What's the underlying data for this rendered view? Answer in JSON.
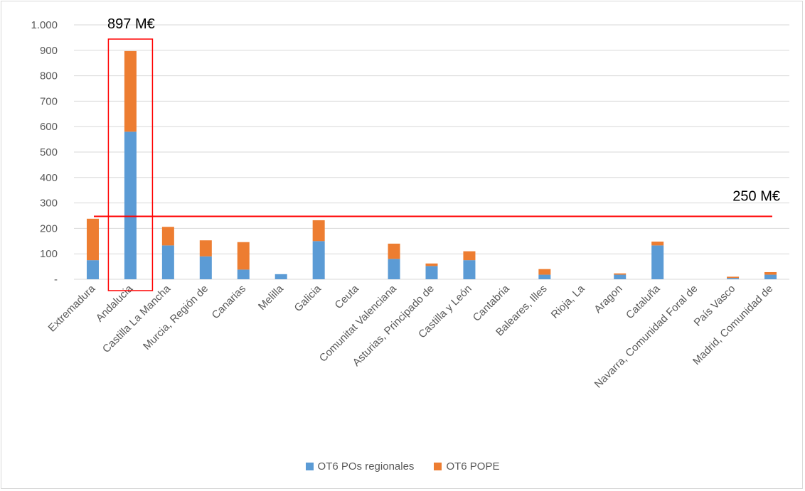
{
  "chart_data": {
    "type": "bar",
    "stacked": true,
    "categories": [
      "Extremadura",
      "Andalucia",
      "Castilla La Mancha",
      "Murcia, Región de",
      "Canarias",
      "Melilla",
      "Galicia",
      "Ceuta",
      "Comunitat Valenciana",
      "Asturias, Principado de",
      "Castilla y León",
      "Cantabria",
      "Baleares, Illes",
      "Rioja, La",
      "Aragon",
      "Cataluña",
      "Navarra, Comunidad Foral de",
      "País Vasco",
      "Madrid, Comunidad de"
    ],
    "series": [
      {
        "name": "OT6 POs regionales",
        "color": "#5b9bd5",
        "values": [
          75,
          580,
          133,
          90,
          38,
          20,
          150,
          0,
          80,
          52,
          75,
          0,
          18,
          0,
          18,
          133,
          0,
          5,
          18
        ]
      },
      {
        "name": "OT6 POPE",
        "color": "#ed7d31",
        "values": [
          163,
          317,
          73,
          63,
          108,
          0,
          82,
          0,
          60,
          10,
          35,
          0,
          22,
          0,
          5,
          15,
          0,
          5,
          10
        ]
      }
    ],
    "ylim": [
      0,
      1000
    ],
    "yticks": [
      "-",
      "100",
      "200",
      "300",
      "400",
      "500",
      "600",
      "700",
      "800",
      "900",
      "1.000"
    ],
    "grid": true,
    "legend_position": "bottom",
    "reference_line": {
      "value": 250,
      "label": "250 M€",
      "color": "#ff0000"
    },
    "highlight": {
      "category": "Andalucia",
      "label": "897 M€",
      "color": "#ff0000"
    }
  }
}
